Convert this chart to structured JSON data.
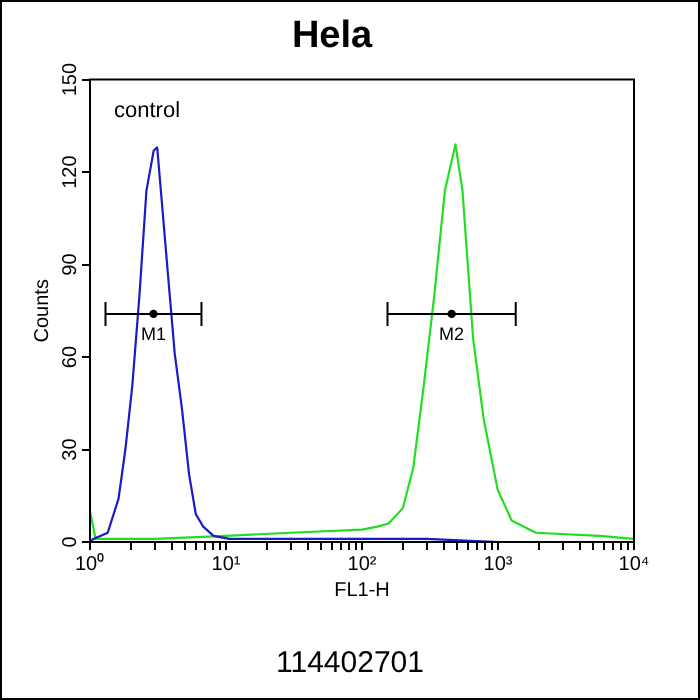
{
  "chart_data": {
    "type": "line",
    "title": "Hela",
    "xlabel": "FL1-H",
    "ylabel": "Counts",
    "log": "x",
    "xlim": [
      1,
      10000
    ],
    "ylim": [
      0,
      150
    ],
    "xticks": [
      {
        "value": 1,
        "label": "10⁰"
      },
      {
        "value": 2,
        "label": null
      },
      {
        "value": 3,
        "label": null
      },
      {
        "value": 4,
        "label": null
      },
      {
        "value": 5,
        "label": null
      },
      {
        "value": 6,
        "label": null
      },
      {
        "value": 7,
        "label": null
      },
      {
        "value": 8,
        "label": null
      },
      {
        "value": 9,
        "label": null
      },
      {
        "value": 10,
        "label": "10¹"
      },
      {
        "value": 20,
        "label": null
      },
      {
        "value": 30,
        "label": null
      },
      {
        "value": 40,
        "label": null
      },
      {
        "value": 50,
        "label": null
      },
      {
        "value": 60,
        "label": null
      },
      {
        "value": 70,
        "label": null
      },
      {
        "value": 80,
        "label": null
      },
      {
        "value": 90,
        "label": null
      },
      {
        "value": 100,
        "label": "10²"
      },
      {
        "value": 200,
        "label": null
      },
      {
        "value": 300,
        "label": null
      },
      {
        "value": 400,
        "label": null
      },
      {
        "value": 500,
        "label": null
      },
      {
        "value": 600,
        "label": null
      },
      {
        "value": 700,
        "label": null
      },
      {
        "value": 800,
        "label": null
      },
      {
        "value": 900,
        "label": null
      },
      {
        "value": 1000,
        "label": "10³"
      },
      {
        "value": 2000,
        "label": null
      },
      {
        "value": 3000,
        "label": null
      },
      {
        "value": 4000,
        "label": null
      },
      {
        "value": 5000,
        "label": null
      },
      {
        "value": 6000,
        "label": null
      },
      {
        "value": 7000,
        "label": null
      },
      {
        "value": 8000,
        "label": null
      },
      {
        "value": 9000,
        "label": null
      },
      {
        "value": 10000,
        "label": "10⁴"
      }
    ],
    "yticks": [
      0,
      30,
      60,
      90,
      120,
      150
    ],
    "grid": false,
    "legend": false,
    "line_style": "solid",
    "series": [
      {
        "color": "#1a1ac8",
        "x": [
          1,
          1.06,
          1.35,
          1.62,
          1.82,
          2.05,
          2.31,
          2.6,
          2.94,
          3.12,
          3.32,
          3.74,
          4.2,
          4.75,
          5.35,
          6.0,
          6.8,
          8.1,
          10.6,
          30,
          100,
          300,
          1000
        ],
        "values": [
          0,
          1,
          3,
          14,
          30,
          51,
          80,
          114,
          127,
          128,
          114,
          87,
          61,
          43,
          22,
          9,
          5,
          2,
          1,
          1,
          1,
          1,
          0
        ]
      },
      {
        "color": "#22dd22",
        "x": [
          1,
          1.1,
          3,
          10,
          30,
          100,
          130,
          157,
          200,
          238,
          285,
          340,
          407,
          487,
          548,
          656,
          784,
          994,
          1260,
          1900,
          5580,
          10000
        ],
        "values": [
          10,
          1,
          1,
          2,
          3,
          4,
          5,
          6,
          11,
          24,
          51,
          80,
          114,
          129,
          114,
          66,
          40,
          17,
          7,
          3,
          2,
          1
        ]
      },
      {
        "type": "scatter",
        "color": "#000000",
        "x": [
          2.93,
          456
        ],
        "values": [
          74,
          74
        ],
        "xerrors": [
          [
            1.3,
            6.6
          ],
          [
            154,
            1350
          ]
        ]
      }
    ],
    "annotations": [
      "control",
      "114402701",
      {
        "text": "M1",
        "x": 2.93,
        "y": 74
      },
      {
        "text": "M2",
        "x": 456,
        "y": 74
      }
    ]
  }
}
